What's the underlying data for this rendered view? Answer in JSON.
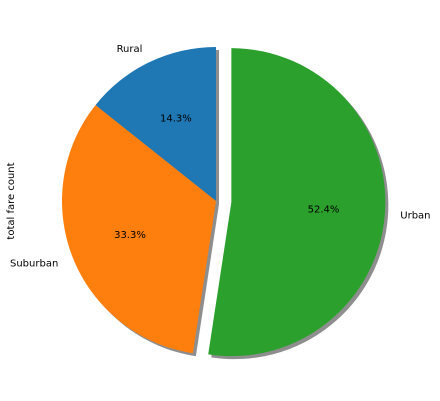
{
  "chart_data": {
    "type": "pie",
    "title": "",
    "xlabel": "",
    "ylabel": "total fare count",
    "categories": [
      "Rural",
      "Suburban",
      "Urban"
    ],
    "values": [
      14.3,
      33.3,
      52.4
    ],
    "value_labels": [
      "14.3%",
      "33.3%",
      "52.4%"
    ],
    "colors": [
      "#1f77b4",
      "#ff7f0e",
      "#2ca02c"
    ],
    "explode": [
      0,
      0,
      0.1
    ],
    "start_angle_deg": 90,
    "shadow": true,
    "legend": false,
    "grid": false
  }
}
